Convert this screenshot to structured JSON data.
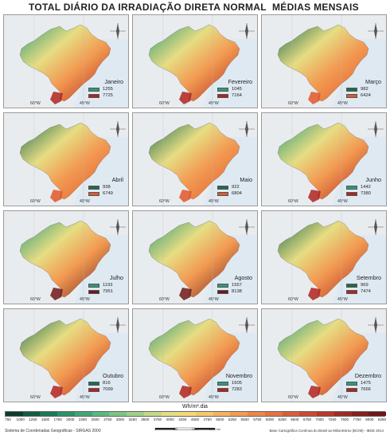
{
  "title_left": "TOTAL DIÁRIO DA IRRADIAÇÃO DIRETA NORMAL",
  "title_right": "MÉDIAS MENSAIS",
  "meridians": {
    "left": "60°W",
    "right": "45°W"
  },
  "panels": [
    {
      "month": "Janeiro",
      "min": "1255",
      "max": "7725",
      "min_color": "#2e9a78",
      "max_color": "#b0241e"
    },
    {
      "month": "Fevereiro",
      "min": "1045",
      "max": "7164",
      "min_color": "#2e9a78",
      "max_color": "#b0241e"
    },
    {
      "month": "Março",
      "min": "982",
      "max": "6424",
      "min_color": "#1f6b4e",
      "max_color": "#e0582b"
    },
    {
      "month": "Abril",
      "min": "938",
      "max": "6749",
      "min_color": "#1f6b4e",
      "max_color": "#e0582b"
    },
    {
      "month": "Maio",
      "min": "922",
      "max": "6804",
      "min_color": "#1f6b4e",
      "max_color": "#e0582b"
    },
    {
      "month": "Junho",
      "min": "1442",
      "max": "7380",
      "min_color": "#2e9a78",
      "max_color": "#b0241e"
    },
    {
      "month": "Julho",
      "min": "1193",
      "max": "7951",
      "min_color": "#2e9a78",
      "max_color": "#6e1a1a"
    },
    {
      "month": "Agosto",
      "min": "1557",
      "max": "8138",
      "min_color": "#2e9a78",
      "max_color": "#6e1a1a"
    },
    {
      "month": "Setembro",
      "min": "969",
      "max": "7474",
      "min_color": "#1f6b4e",
      "max_color": "#b0241e"
    },
    {
      "month": "Outubro",
      "min": "816",
      "max": "7099",
      "min_color": "#1f6b4e",
      "max_color": "#b0241e"
    },
    {
      "month": "Novembro",
      "min": "1605",
      "max": "7283",
      "min_color": "#2e9a78",
      "max_color": "#b0241e"
    },
    {
      "month": "Dezembro",
      "min": "1475",
      "max": "7666",
      "min_color": "#2e9a78",
      "max_color": "#b0241e"
    }
  ],
  "colorbar": {
    "unit": "Wh/m².dia",
    "ticks": [
      "750",
      "1000",
      "1250",
      "1500",
      "1750",
      "2000",
      "2250",
      "2500",
      "2750",
      "3000",
      "3250",
      "3500",
      "3750",
      "4000",
      "4250",
      "4500",
      "4750",
      "5000",
      "5250",
      "5500",
      "5750",
      "6000",
      "6250",
      "6500",
      "6750",
      "7000",
      "7250",
      "7500",
      "7750",
      "8000",
      "8250"
    ],
    "colors": [
      "#0b3d2c",
      "#145c42",
      "#1c7a56",
      "#2a9468",
      "#3fa877",
      "#5ab880",
      "#7bc585",
      "#a0d087",
      "#c4da86",
      "#e3df82",
      "#f4d978",
      "#f7c96a",
      "#f6b25c",
      "#f29c51",
      "#ec8748",
      "#e47240",
      "#d95e38",
      "#cb4b31",
      "#b8392b",
      "#a02a25",
      "#861f1f",
      "#6d181a"
    ]
  },
  "footer": {
    "left": "Sistema de Coordenadas Geográficas - SIRGAS 2000",
    "right": "Base Cartográfica Contínua do Brasil ao Milionésimo (BCIM) - IBGE 2014",
    "scale": [
      "0",
      "900",
      "1800",
      "2700 km"
    ]
  }
}
